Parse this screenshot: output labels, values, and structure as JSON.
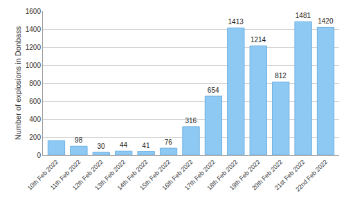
{
  "chart_data": {
    "type": "bar",
    "y_label": "Number of explosions in Donbass",
    "categories": [
      "10th Feb 2022",
      "11th Feb 2022",
      "12th Feb 2022",
      "13th Feb 2022",
      "14th Feb 2022",
      "15th Feb 2022",
      "16th Feb 2022",
      "17th Feb 2022",
      "18th Feb 2022",
      "19th Feb 2022",
      "20th Feb 2022",
      "21st Feb 2022",
      "22nd Feb 2022"
    ],
    "values": [
      160,
      98,
      30,
      44,
      41,
      76,
      316,
      654,
      1413,
      1214,
      812,
      1481,
      1420
    ],
    "value_labels": [
      null,
      "98",
      "30",
      "44",
      "41",
      "76",
      "316",
      "654",
      "1413",
      "1214",
      "812",
      "1481",
      "1420"
    ],
    "data_labels": true,
    "color": "#8ec9f3",
    "ylim": [
      0,
      1600
    ],
    "yticks": [
      0,
      200,
      400,
      600,
      800,
      1000,
      1200,
      1400,
      1600
    ],
    "grid": true
  }
}
